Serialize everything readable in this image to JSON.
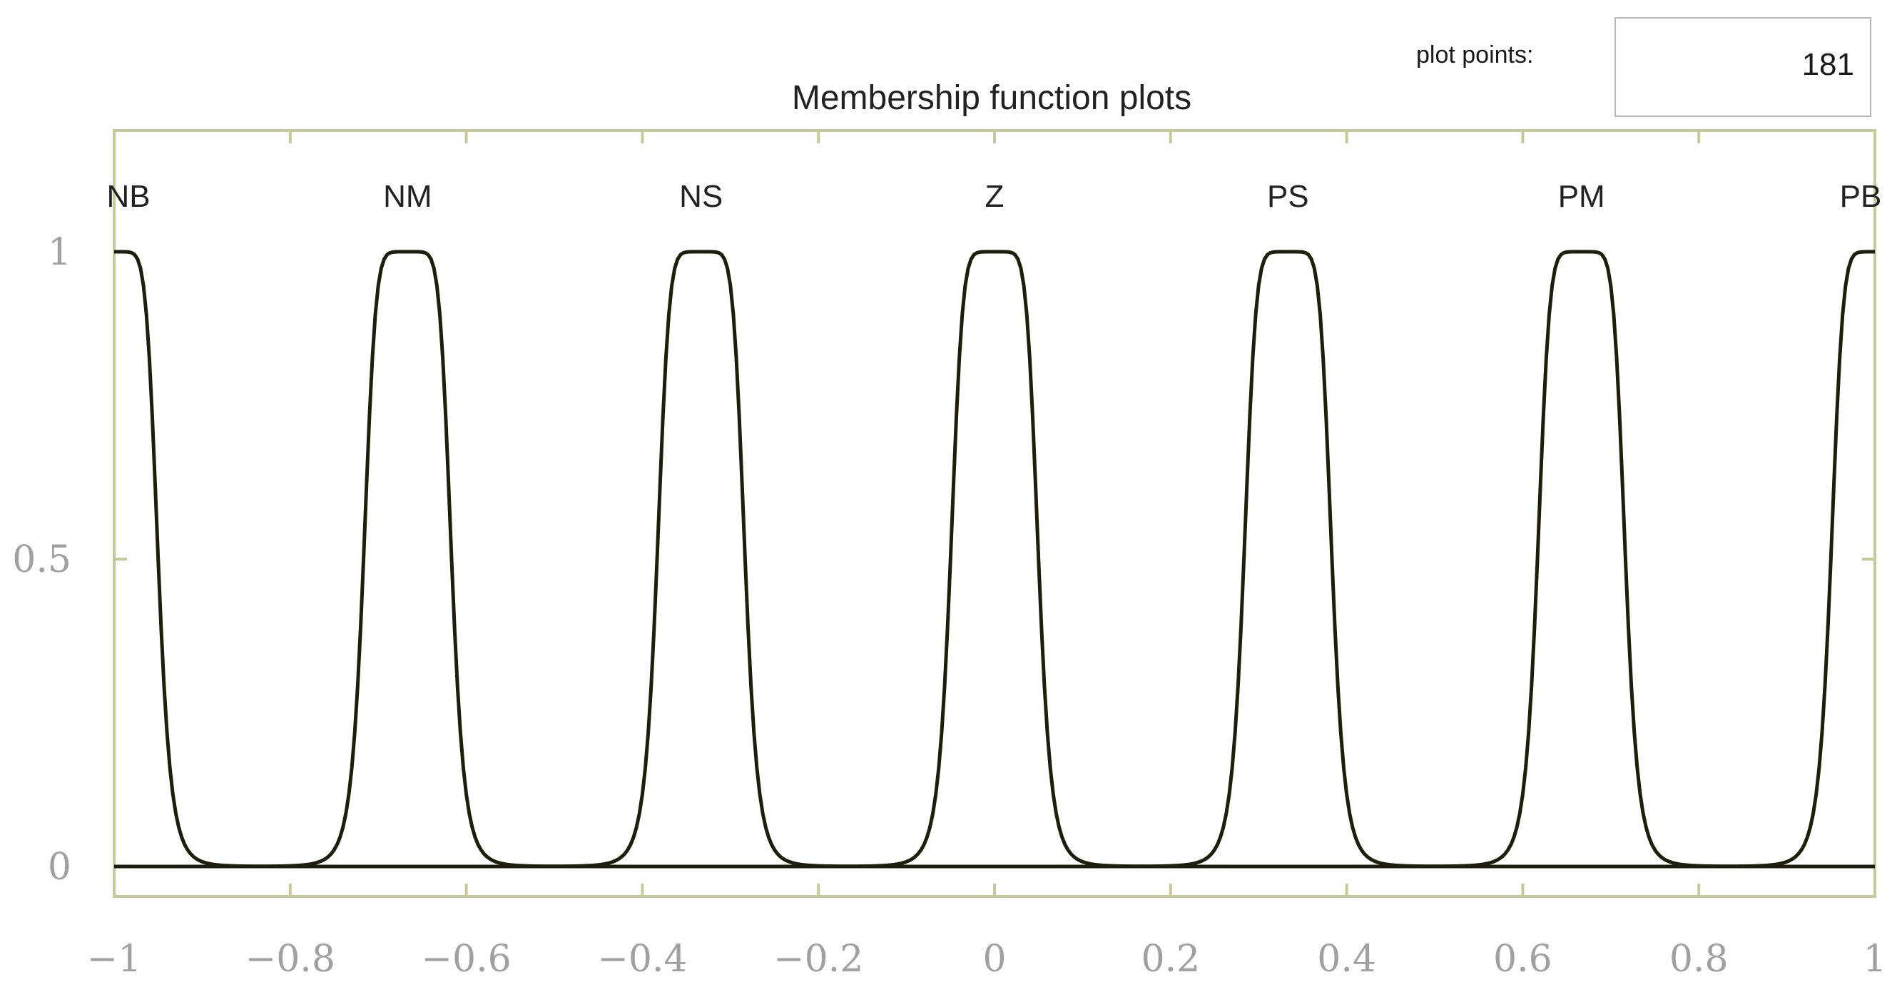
{
  "plot_points": {
    "label": "plot points:",
    "value": "181"
  },
  "colors": {
    "axes": "#c7c99a",
    "curve": "#1e1e0c",
    "tick_text": "#a0a0a0",
    "label_text": "#222222"
  },
  "chart_data": {
    "type": "line",
    "title": "Membership function plots",
    "xlabel": "",
    "ylabel": "",
    "xlim": [
      -1,
      1
    ],
    "ylim": [
      0,
      1.2
    ],
    "xticks": [
      -1,
      -0.8,
      -0.6,
      -0.4,
      -0.2,
      0,
      0.2,
      0.4,
      0.6,
      0.8,
      1
    ],
    "xtick_labels": [
      "−1",
      "−0.8",
      "−0.6",
      "−0.4",
      "−0.2",
      "0",
      "0.2",
      "0.4",
      "0.6",
      "0.8",
      "1"
    ],
    "yticks": [
      0,
      0.5,
      1
    ],
    "ytick_labels": [
      "0",
      "0.5",
      "1"
    ],
    "grid": false,
    "membership_functions": [
      {
        "name": "NB",
        "type": "gbellmf",
        "a": 0.05,
        "b": 3.5,
        "c": -1.0
      },
      {
        "name": "NM",
        "type": "gbellmf",
        "a": 0.05,
        "b": 3.5,
        "c": -0.6667
      },
      {
        "name": "NS",
        "type": "gbellmf",
        "a": 0.05,
        "b": 3.5,
        "c": -0.3333
      },
      {
        "name": "Z",
        "type": "gbellmf",
        "a": 0.05,
        "b": 3.5,
        "c": 0.0
      },
      {
        "name": "PS",
        "type": "gbellmf",
        "a": 0.05,
        "b": 3.5,
        "c": 0.3333
      },
      {
        "name": "PM",
        "type": "gbellmf",
        "a": 0.05,
        "b": 3.5,
        "c": 0.6667
      },
      {
        "name": "PB",
        "type": "gbellmf",
        "a": 0.05,
        "b": 3.5,
        "c": 1.0
      }
    ]
  }
}
